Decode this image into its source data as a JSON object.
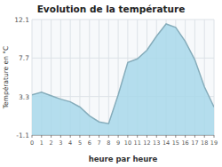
{
  "chart_data": {
    "type": "area",
    "title": "Evolution de la température",
    "x_label": "heure par heure",
    "y_label": "Température en °C",
    "x": [
      0,
      1,
      2,
      3,
      4,
      5,
      6,
      7,
      8,
      9,
      10,
      11,
      12,
      13,
      14,
      15,
      16,
      17,
      18,
      19
    ],
    "values": [
      3.5,
      3.8,
      3.4,
      3.0,
      2.7,
      2.1,
      1.1,
      0.4,
      0.2,
      3.5,
      7.2,
      7.6,
      8.6,
      10.2,
      11.6,
      11.2,
      9.6,
      7.5,
      4.4,
      2.1
    ],
    "color": "#a8d8ea",
    "xlim": [
      0,
      19
    ],
    "xticks": [
      0,
      1,
      2,
      3,
      4,
      5,
      6,
      7,
      8,
      9,
      10,
      11,
      12,
      13,
      14,
      15,
      16,
      17,
      18,
      19
    ],
    "ylim": [
      -1.1,
      12.1
    ],
    "yticks": [
      -1.1,
      3.3,
      7.7,
      12.1
    ],
    "grid": true
  }
}
